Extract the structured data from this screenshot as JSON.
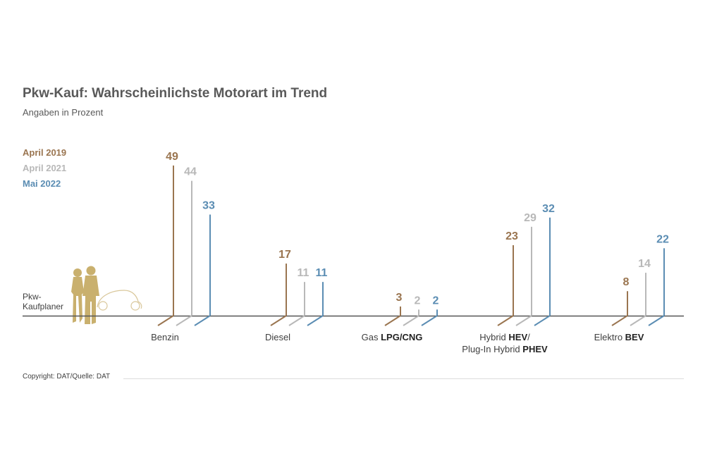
{
  "colors": {
    "April 2019": "#9a7550",
    "April 2021": "#b8b8b8",
    "Mai 2022": "#5b8db3",
    "figure": "#c9b06e",
    "axis": "#555555",
    "text": "#404040"
  },
  "icon": "couple-with-car-icon",
  "chart_data": {
    "type": "bar",
    "title": "Pkw-Kauf: Wahrscheinlichste Motorart im Trend",
    "subtitle": "Angaben in Prozent",
    "axis_label": "Pkw-Kaufplaner",
    "legend_position": "top-left",
    "grid": false,
    "categories": [
      {
        "text": "Benzin",
        "bold": ""
      },
      {
        "text": "Diesel",
        "bold": ""
      },
      {
        "text": "Gas ",
        "bold": "LPG/CNG"
      },
      {
        "text": "Hybrid ",
        "bold": "HEV",
        "after": "/",
        "line2": "Plug-In Hybrid ",
        "line2_bold": "PHEV"
      },
      {
        "text": "Elektro ",
        "bold": "BEV"
      }
    ],
    "series": [
      {
        "name": "April 2019",
        "values": [
          49,
          17,
          3,
          23,
          8
        ]
      },
      {
        "name": "April 2021",
        "values": [
          44,
          11,
          2,
          29,
          14
        ]
      },
      {
        "name": "Mai 2022",
        "values": [
          33,
          11,
          2,
          32,
          22
        ]
      }
    ]
  },
  "footer": "Copyright: DAT/Quelle: DAT"
}
